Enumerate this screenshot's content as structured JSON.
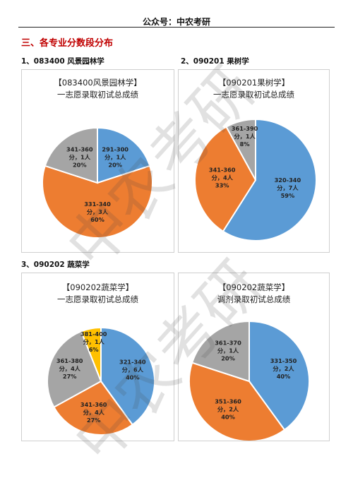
{
  "header": {
    "text": "公众号：中农考研"
  },
  "section_title": "三、各专业分数段分布",
  "subsections": [
    {
      "label": "1、083400 风景园林学"
    },
    {
      "label": "2、090201 果树学"
    },
    {
      "label": "3、090202 蔬菜学"
    }
  ],
  "watermark": "中农考研",
  "colors": {
    "blue": "#5b9bd5",
    "orange": "#ed7d31",
    "gray": "#a5a5a5",
    "yellow": "#ffc000"
  },
  "chart_data": [
    {
      "type": "pie",
      "title_line1": "【083400风景园林学】",
      "title_line2": "一志愿录取初试总成绩",
      "slices": [
        {
          "label": "291-300",
          "count_text": "分，1人",
          "pct_text": "20%",
          "value": 20,
          "color": "blue"
        },
        {
          "label": "331-340",
          "count_text": "分，3人",
          "pct_text": "60%",
          "value": 60,
          "color": "orange"
        },
        {
          "label": "341-360",
          "count_text": "分，1人",
          "pct_text": "20%",
          "value": 20,
          "color": "gray"
        }
      ]
    },
    {
      "type": "pie",
      "title_line1": "【090201果树学】",
      "title_line2": "一志愿录取初试总成绩",
      "slices": [
        {
          "label": "320-340",
          "count_text": "分，7人",
          "pct_text": "59%",
          "value": 59,
          "color": "blue"
        },
        {
          "label": "341-360",
          "count_text": "分，4人",
          "pct_text": "33%",
          "value": 33,
          "color": "orange"
        },
        {
          "label": "361-390",
          "count_text": "分，1人",
          "pct_text": "8%",
          "value": 8,
          "color": "gray"
        }
      ]
    },
    {
      "type": "pie",
      "title_line1": "【090202蔬菜学】",
      "title_line2": "一志愿录取初试总成绩",
      "slices": [
        {
          "label": "321-340",
          "count_text": "分，6人",
          "pct_text": "40%",
          "value": 40,
          "color": "blue"
        },
        {
          "label": "341-360",
          "count_text": "分，4人",
          "pct_text": "27%",
          "value": 27,
          "color": "orange"
        },
        {
          "label": "361-380",
          "count_text": "分，4人",
          "pct_text": "27%",
          "value": 27,
          "color": "gray"
        },
        {
          "label": "381-400",
          "count_text": "分，1人",
          "pct_text": "6%",
          "value": 6,
          "color": "yellow"
        }
      ]
    },
    {
      "type": "pie",
      "title_line1": "【090202蔬菜学】",
      "title_line2": "调剂录取初试总成绩",
      "slices": [
        {
          "label": "331-350",
          "count_text": "分，2人",
          "pct_text": "40%",
          "value": 40,
          "color": "blue"
        },
        {
          "label": "351-360",
          "count_text": "分，2人",
          "pct_text": "40%",
          "value": 40,
          "color": "orange"
        },
        {
          "label": "361-370",
          "count_text": "分，1人",
          "pct_text": "20%",
          "value": 20,
          "color": "gray"
        }
      ]
    }
  ]
}
